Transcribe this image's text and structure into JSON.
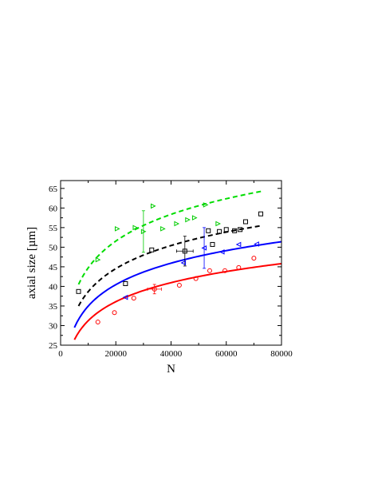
{
  "chart_data": {
    "type": "scatter",
    "title": "",
    "xlabel": "N",
    "ylabel": "axial size [µm]",
    "xlim": [
      0,
      80000
    ],
    "ylim": [
      25,
      67
    ],
    "x_ticks": [
      0,
      20000,
      40000,
      60000,
      80000
    ],
    "y_ticks": [
      25,
      30,
      35,
      40,
      45,
      50,
      55,
      60,
      65
    ],
    "x_tick_labels": [
      "0",
      "20000",
      "40000",
      "60000",
      "80000"
    ],
    "y_tick_labels": [
      "25",
      "30",
      "35",
      "40",
      "45",
      "50",
      "55",
      "60",
      "65"
    ],
    "grid": false,
    "series": [
      {
        "marker": "triangle-right",
        "color": "#00cc00",
        "points": [
          {
            "x": 13500,
            "y": 46.8
          },
          {
            "x": 20500,
            "y": 54.7
          },
          {
            "x": 27000,
            "y": 55.0
          },
          {
            "x": 30000,
            "y": 54.0,
            "yerr": 5.3
          },
          {
            "x": 33500,
            "y": 60.5
          },
          {
            "x": 37000,
            "y": 54.7
          },
          {
            "x": 42000,
            "y": 56.0
          },
          {
            "x": 46000,
            "y": 57.0
          },
          {
            "x": 48500,
            "y": 57.5
          },
          {
            "x": 52500,
            "y": 60.8
          },
          {
            "x": 57000,
            "y": 56.0
          }
        ]
      },
      {
        "marker": "square",
        "color": "#000000",
        "points": [
          {
            "x": 6500,
            "y": 38.7
          },
          {
            "x": 23500,
            "y": 40.7
          },
          {
            "x": 33000,
            "y": 49.3
          },
          {
            "x": 45000,
            "y": 49.0,
            "yerr": 3.8,
            "xerr": 3000
          },
          {
            "x": 53500,
            "y": 54.2
          },
          {
            "x": 55000,
            "y": 50.7
          },
          {
            "x": 57500,
            "y": 54.0
          },
          {
            "x": 60000,
            "y": 54.5
          },
          {
            "x": 63000,
            "y": 54.2
          },
          {
            "x": 65000,
            "y": 54.5
          },
          {
            "x": 67000,
            "y": 56.5
          },
          {
            "x": 72500,
            "y": 58.5
          }
        ]
      },
      {
        "marker": "triangle-left",
        "color": "#0000ff",
        "points": [
          {
            "x": 23500,
            "y": 37.2
          },
          {
            "x": 44500,
            "y": 46.0
          },
          {
            "x": 52000,
            "y": 49.8,
            "yerr": 5.2
          },
          {
            "x": 58500,
            "y": 48.8
          },
          {
            "x": 64500,
            "y": 50.7
          },
          {
            "x": 71000,
            "y": 50.8
          }
        ]
      },
      {
        "marker": "circle",
        "color": "#ff0000",
        "points": [
          {
            "x": 13500,
            "y": 30.9
          },
          {
            "x": 19500,
            "y": 33.3
          },
          {
            "x": 26500,
            "y": 37.0
          },
          {
            "x": 34000,
            "y": 39.3,
            "yerr": 1.2,
            "xerr": 2500
          },
          {
            "x": 43000,
            "y": 40.3
          },
          {
            "x": 49000,
            "y": 42.0
          },
          {
            "x": 54000,
            "y": 44.0
          },
          {
            "x": 59500,
            "y": 44.0
          },
          {
            "x": 64500,
            "y": 44.8
          },
          {
            "x": 70000,
            "y": 47.2
          }
        ]
      }
    ],
    "fits": [
      {
        "style": "dashed",
        "color": "#00dd00",
        "a": 40.5,
        "b": 65.2,
        "x_start": 6500,
        "x_end": 73000
      },
      {
        "style": "dashed",
        "color": "#000000",
        "a": 35.0,
        "b": 56.3,
        "x_start": 6500,
        "x_end": 73000
      },
      {
        "style": "solid",
        "color": "#0000ff",
        "a": 29.5,
        "b": 51.4,
        "x_start": 5000,
        "x_end": 80000
      },
      {
        "style": "solid",
        "color": "#ff0000",
        "a": 26.4,
        "b": 45.8,
        "x_start": 5000,
        "x_end": 80000
      }
    ]
  }
}
